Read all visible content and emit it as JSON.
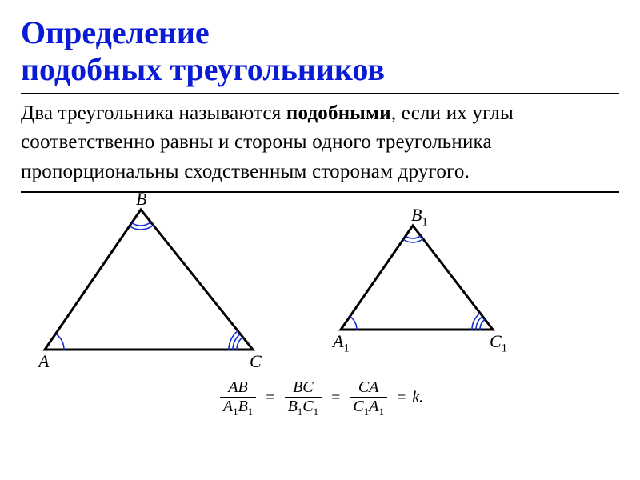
{
  "title": {
    "line1": "Определение",
    "line2": "подобных треугольников",
    "color": "#0a1bd6",
    "fontsize": 40
  },
  "rule": {
    "color": "#000000",
    "thickness": 2
  },
  "definition": {
    "pre": "Два треугольника называются ",
    "bold": "подобными",
    "post": ", если их углы соответственно равны и стороны одного треугольника пропорциональны сходственным сторонам другого.",
    "fontsize": 25,
    "color": "#000000"
  },
  "figure": {
    "triangle1": {
      "stroke": "#000000",
      "stroke_width": 3,
      "angle_color": "#1030d0",
      "points": {
        "A": [
          30,
          190
        ],
        "B": [
          150,
          15
        ],
        "C": [
          290,
          190
        ]
      },
      "labels": {
        "A": "A",
        "B": "B",
        "C": "C"
      }
    },
    "triangle2": {
      "stroke": "#000000",
      "stroke_width": 3,
      "angle_color": "#1030d0",
      "points": {
        "A1": [
          400,
          165
        ],
        "B1": [
          490,
          35
        ],
        "C1": [
          590,
          165
        ]
      },
      "labels": {
        "A1": "A",
        "B1": "B",
        "C1": "C",
        "sub": "1"
      }
    }
  },
  "formula": {
    "color": "#000000",
    "terms": [
      {
        "num": "AB",
        "den_a": "A",
        "den_b": "B"
      },
      {
        "num": "BC",
        "den_a": "B",
        "den_b": "C"
      },
      {
        "num": "CA",
        "den_a": "C",
        "den_b": "A"
      }
    ],
    "sub": "1",
    "eq": "=",
    "k": "k.",
    "fontsize": 20
  }
}
